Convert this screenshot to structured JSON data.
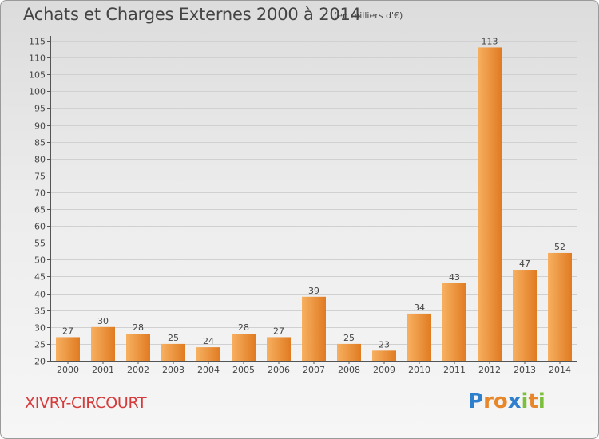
{
  "title": "Achats et Charges Externes 2000 à 2014",
  "subtitle": "(en milliers d'€)",
  "commune": "XIVRY-CIRCOURT",
  "logo": {
    "letters": [
      "P",
      "r",
      "o",
      "x",
      "i",
      "t",
      "i"
    ],
    "colors": [
      "#2f7fcf",
      "#e8862a",
      "#e8862a",
      "#2f7fcf",
      "#7bbf3a",
      "#e8862a",
      "#7bbf3a"
    ]
  },
  "colors": {
    "bar_light": "#f7ac5a",
    "bar_dark": "#e07b22",
    "grid": "#d0d0d0",
    "text": "#444444",
    "commune": "#d63a3a"
  },
  "chart_data": {
    "type": "bar",
    "title": "Achats et Charges Externes 2000 à 2014",
    "subtitle": "(en milliers d'€)",
    "categories": [
      "2000",
      "2001",
      "2002",
      "2003",
      "2004",
      "2005",
      "2006",
      "2007",
      "2008",
      "2009",
      "2010",
      "2011",
      "2012",
      "2013",
      "2014"
    ],
    "values": [
      27,
      30,
      28,
      25,
      24,
      28,
      27,
      39,
      25,
      23,
      34,
      43,
      113,
      47,
      52
    ],
    "ylim": [
      20,
      115
    ],
    "yticks": [
      20,
      25,
      30,
      35,
      40,
      45,
      50,
      55,
      60,
      65,
      70,
      75,
      80,
      85,
      90,
      95,
      100,
      105,
      110,
      115
    ],
    "grid": true
  }
}
